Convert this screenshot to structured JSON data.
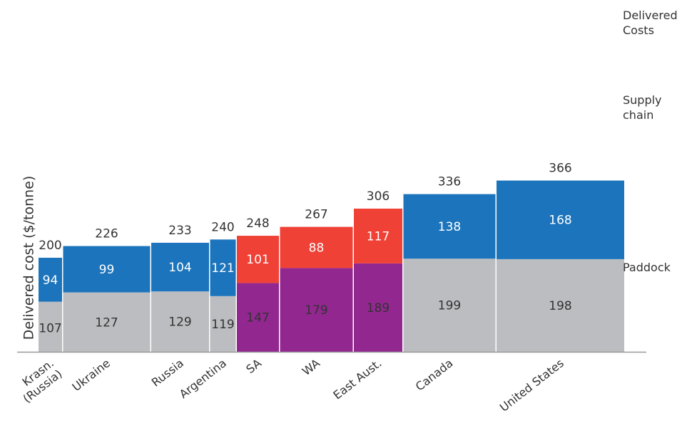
{
  "chart_data": {
    "type": "bar",
    "stacked": true,
    "variable_width": true,
    "ylabel": "Delivered cost ($/tonne)",
    "categories": [
      "Krasn. (Russia)",
      "Ukraine",
      "Russia",
      "Argentina",
      "SA",
      "WA",
      "East Aust.",
      "Canada",
      "United States"
    ],
    "category_lines": [
      [
        "Krasn.",
        "(Russia)"
      ],
      [
        "Ukraine"
      ],
      [
        "Russia"
      ],
      [
        "Argentina"
      ],
      [
        "SA"
      ],
      [
        "WA"
      ],
      [
        "East Aust."
      ],
      [
        "Canada"
      ],
      [
        "United States"
      ]
    ],
    "series": [
      {
        "name": "Paddock",
        "values": [
          107,
          127,
          129,
          119,
          147,
          179,
          189,
          199,
          198
        ]
      },
      {
        "name": "Supply chain",
        "values": [
          94,
          99,
          104,
          121,
          101,
          88,
          117,
          138,
          168
        ]
      }
    ],
    "totals": [
      200,
      226,
      233,
      240,
      248,
      267,
      306,
      336,
      366
    ],
    "legend_lines": [
      [
        "Delivered",
        "Costs"
      ],
      [
        "Supply",
        "chain"
      ],
      [
        "Paddock"
      ]
    ],
    "colors": {
      "paddock_other": "#bcbdc0",
      "paddock_australia": "#92278f",
      "supply_other": "#1c75bc",
      "supply_australia": "#ef4136",
      "label_dark": "#333333",
      "label_light": "#ffffff",
      "baseline": "#999999"
    },
    "australian_categories": [
      "SA",
      "WA",
      "East Aust."
    ]
  }
}
